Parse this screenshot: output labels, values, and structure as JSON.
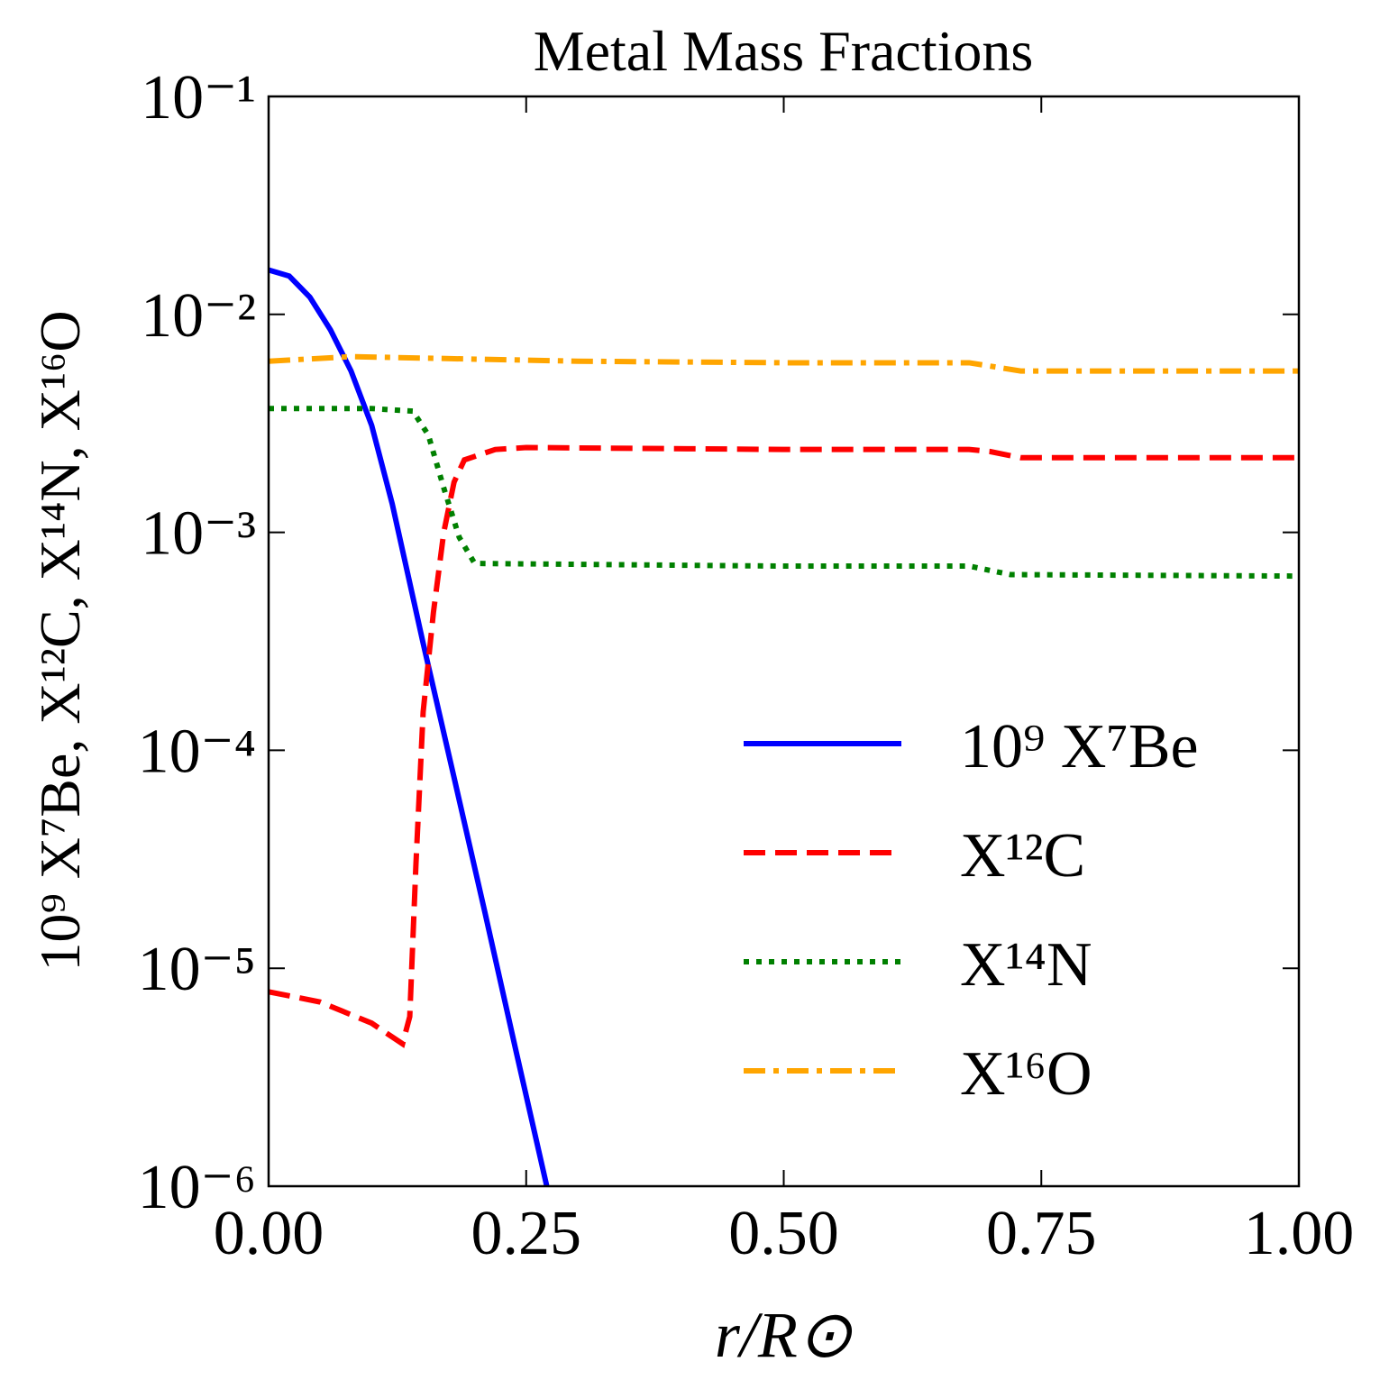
{
  "chart_data": {
    "type": "line",
    "title": "Metal Mass Fractions",
    "x_label": "r/R⊙",
    "y_label": "10⁹ X⁷Be, X¹²C, X¹⁴N, X¹⁶O",
    "y_scale": "log",
    "grid": false,
    "legend_loc": "lower right",
    "xlim": [
      0,
      1
    ],
    "ylim": [
      1e-06,
      0.1
    ],
    "xticks": [
      {
        "value": 0,
        "label": "0.00"
      },
      {
        "value": 0.25,
        "label": "0.25"
      },
      {
        "value": 0.5,
        "label": "0.50"
      },
      {
        "value": 0.75,
        "label": "0.75"
      },
      {
        "value": 1,
        "label": "1.00"
      }
    ],
    "yticks": [
      {
        "value": 1e-06,
        "label": "10⁻⁶"
      },
      {
        "value": 1e-05,
        "label": "10⁻⁵"
      },
      {
        "value": 0.0001,
        "label": "10⁻⁴"
      },
      {
        "value": 0.001,
        "label": "10⁻³"
      },
      {
        "value": 0.01,
        "label": "10⁻²"
      },
      {
        "value": 0.1,
        "label": "10⁻¹"
      }
    ],
    "series": [
      {
        "name": "10⁹ X⁷Be",
        "color": "#0000ff",
        "dash": "solid",
        "x": [
          0,
          0.02,
          0.04,
          0.06,
          0.08,
          0.1,
          0.12,
          0.15,
          0.18,
          0.21,
          0.24,
          0.27
        ],
        "values": [
          0.016,
          0.015,
          0.012,
          0.0085,
          0.0055,
          0.0031,
          0.00135,
          0.00031,
          7.5e-05,
          1.8e-05,
          4.2e-06,
          1e-06
        ]
      },
      {
        "name": "X¹²C",
        "color": "#ff0000",
        "dash": "dashed",
        "x": [
          0,
          0.05,
          0.1,
          0.13,
          0.137,
          0.143,
          0.15,
          0.16,
          0.17,
          0.18,
          0.19,
          0.22,
          0.25,
          0.5,
          0.68,
          0.7,
          0.73,
          0.8,
          1.0
        ],
        "values": [
          7.8e-06,
          7e-06,
          5.6e-06,
          4.5e-06,
          6e-06,
          3e-05,
          0.00015,
          0.00043,
          0.001,
          0.0017,
          0.00215,
          0.0024,
          0.00245,
          0.0024,
          0.0024,
          0.00235,
          0.0022,
          0.0022,
          0.0022
        ]
      },
      {
        "name": "X¹⁴N",
        "color": "#008000",
        "dash": "dotted",
        "x": [
          0,
          0.1,
          0.14,
          0.155,
          0.17,
          0.185,
          0.2,
          0.5,
          0.68,
          0.72,
          1.0
        ],
        "values": [
          0.0037,
          0.0037,
          0.0036,
          0.0028,
          0.0016,
          0.00095,
          0.00072,
          0.0007,
          0.0007,
          0.00064,
          0.00063
        ]
      },
      {
        "name": "X¹⁶O",
        "color": "#ffa500",
        "dash": "dashdot",
        "x": [
          0,
          0.08,
          0.3,
          0.5,
          0.68,
          0.73,
          1.0
        ],
        "values": [
          0.0061,
          0.0064,
          0.0061,
          0.006,
          0.006,
          0.0055,
          0.0055
        ]
      }
    ]
  }
}
